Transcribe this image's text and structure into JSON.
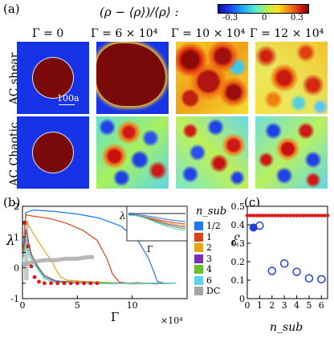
{
  "panels": {
    "a": {
      "label": "(a)",
      "colorbar": {
        "title": "(ρ − ⟨ρ⟩)/⟨ρ⟩ :",
        "ticks": [
          "-0.3",
          "0",
          "0.3"
        ]
      },
      "columns": [
        "Γ = 0",
        "Γ = 6 × 10⁴",
        "Γ = 10 × 10⁴",
        "Γ = 12 × 10⁴"
      ],
      "rows": [
        "AC shear",
        "AC Chaotic"
      ],
      "scalebar": "100a"
    },
    "b": {
      "label": "(b)",
      "ylabel": "λ",
      "xlabel": "Γ",
      "x_exponent": "×10⁴",
      "inset_ylabel": "λ",
      "inset_xlabel": "Γ",
      "legend_title": "n_sub",
      "legend_items": [
        {
          "label": "1/2",
          "color": "#1f77e8"
        },
        {
          "label": "1",
          "color": "#d9421a"
        },
        {
          "label": "2",
          "color": "#e8a512"
        },
        {
          "label": "3",
          "color": "#7b2fb5"
        },
        {
          "label": "4",
          "color": "#6bbf2e"
        },
        {
          "label": "6",
          "color": "#5fd3ee"
        },
        {
          "label": "DC",
          "color": "#a6a6a6"
        }
      ],
      "chart_data": {
        "type": "line",
        "xlim": [
          0,
          15
        ],
        "ylim": [
          -1,
          2
        ],
        "xticks": [
          "0",
          "5",
          "10"
        ],
        "yticks": [
          "-1",
          "-0.5",
          "0",
          "0.5",
          "1",
          "1.5",
          "2"
        ],
        "series": [
          {
            "name": "1/2",
            "x": [
              0,
              0.3,
              1,
              3,
              5,
              7,
              9,
              10.5,
              11.5,
              12.3,
              13,
              14
            ],
            "y": [
              0.3,
              1.8,
              1.88,
              1.83,
              1.75,
              1.62,
              1.35,
              0.9,
              0.3,
              -0.45,
              -0.5,
              -0.5
            ]
          },
          {
            "name": "1",
            "x": [
              0,
              0.3,
              1,
              2.5,
              4,
              5.5,
              6.8,
              7.7,
              8.2,
              8.8,
              9.6,
              10.5,
              12,
              14
            ],
            "y": [
              0.3,
              1.72,
              1.68,
              1.6,
              1.45,
              1.22,
              0.9,
              0.3,
              -0.2,
              -0.46,
              -0.5,
              -0.48,
              -0.52,
              -0.5
            ]
          },
          {
            "name": "2",
            "x": [
              0,
              0.3,
              1,
              2,
              2.7,
              3.1,
              3.5,
              4,
              6,
              8,
              10,
              14
            ],
            "y": [
              0.2,
              1.55,
              1.1,
              0.55,
              0.2,
              -0.1,
              -0.3,
              -0.4,
              -0.45,
              -0.48,
              -0.5,
              -0.5
            ]
          },
          {
            "name": "3",
            "x": [
              0,
              0.3,
              0.8,
              1.4,
              2,
              3,
              5,
              8,
              10,
              14
            ],
            "y": [
              0.2,
              1.25,
              0.45,
              0.05,
              -0.25,
              -0.42,
              -0.47,
              -0.5,
              -0.5,
              -0.5
            ]
          },
          {
            "name": "4",
            "x": [
              0,
              0.3,
              0.8,
              1.4,
              2,
              3,
              5,
              8,
              10,
              14
            ],
            "y": [
              0.2,
              0.95,
              0.35,
              0.0,
              -0.3,
              -0.45,
              -0.48,
              -0.5,
              -0.52,
              -0.5
            ]
          },
          {
            "name": "6",
            "x": [
              0,
              0.3,
              0.8,
              1.4,
              2,
              3,
              5,
              8,
              10,
              14
            ],
            "y": [
              0.2,
              0.7,
              0.25,
              -0.05,
              -0.35,
              -0.48,
              -0.5,
              -0.52,
              -0.5,
              -0.5
            ]
          },
          {
            "name": "DC",
            "x": [
              0,
              0.6,
              1,
              2,
              3,
              4,
              5,
              6,
              6.5
            ],
            "y": [
              0.1,
              0.15,
              0.2,
              0.25,
              0.25,
              0.3,
              0.3,
              0.35,
              0.35
            ]
          }
        ],
        "points": {
          "x": [
            0.2,
            0.5,
            0.8,
            1.1,
            1.5,
            2.0,
            2.6,
            3.2,
            3.8,
            4.4,
            5.0,
            5.6,
            6.2,
            6.8
          ],
          "y": [
            1.45,
            0.7,
            0.05,
            -0.3,
            -0.45,
            -0.5,
            -0.5,
            -0.5,
            -0.5,
            -0.5,
            -0.5,
            -0.5,
            -0.5,
            -0.5
          ]
        }
      }
    },
    "c": {
      "label": "(c)",
      "ylabel": "ℰ",
      "xlabel": "n_sub",
      "chart_data": {
        "type": "scatter",
        "xlim": [
          0,
          6.5
        ],
        "ylim": [
          0,
          0.5
        ],
        "xticks": [
          "0",
          "1",
          "2",
          "3",
          "4",
          "5",
          "6"
        ],
        "yticks": [
          "0",
          "0.1",
          "0.2",
          "0.3",
          "0.4",
          "0.5"
        ],
        "filled": {
          "x": [
            0.5
          ],
          "y": [
            0.385
          ]
        },
        "open": {
          "x": [
            1,
            2,
            3,
            4,
            5,
            6
          ],
          "y": [
            0.395,
            0.15,
            0.19,
            0.145,
            0.11,
            0.105
          ]
        },
        "dc_level": 0.45,
        "dotted_x": [
          0,
          0.25,
          0.5,
          0.75,
          1,
          1.25,
          1.5,
          1.75,
          2,
          2.25,
          2.5,
          2.75,
          3,
          3.25,
          3.5,
          3.75,
          4,
          4.25,
          4.5,
          4.75,
          5,
          5.25,
          5.5,
          5.75,
          6,
          6.25,
          6.5
        ]
      }
    }
  }
}
